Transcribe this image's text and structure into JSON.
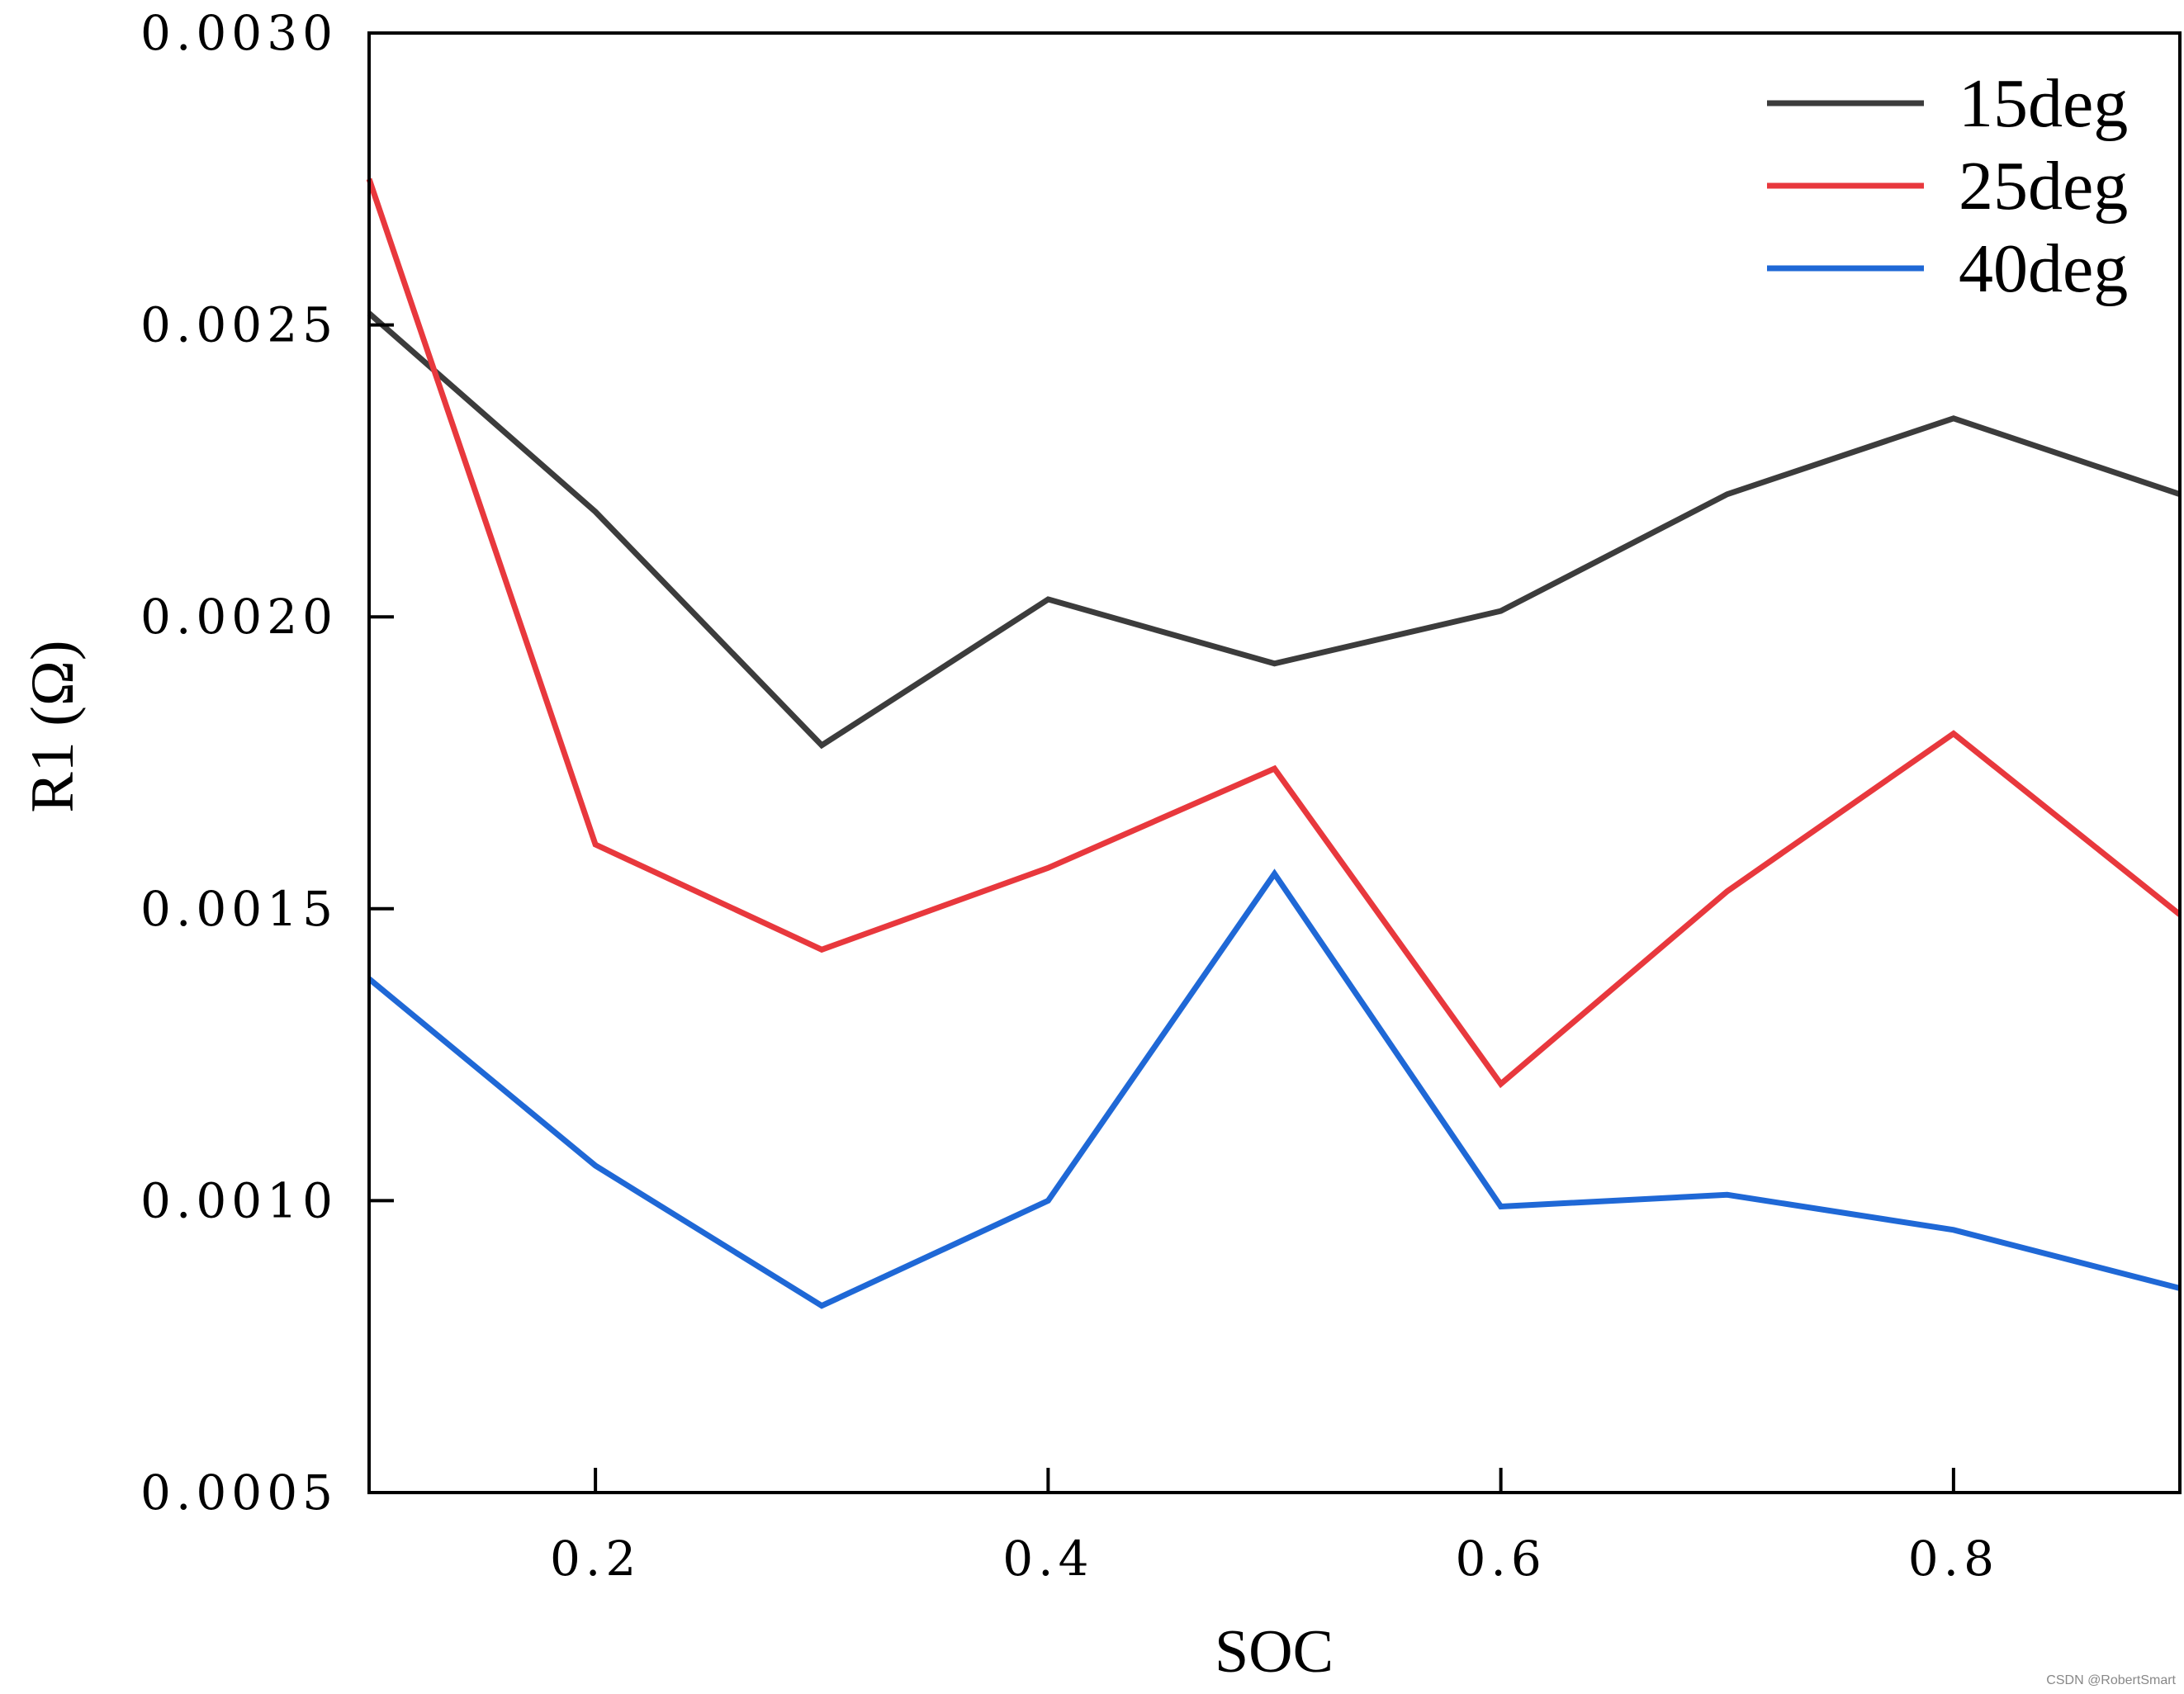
{
  "chart_data": {
    "type": "line",
    "title": "",
    "xlabel": "SOC",
    "ylabel": "R1 (Ω)",
    "xlim": [
      0.1,
      0.9
    ],
    "ylim": [
      0.0005,
      0.003
    ],
    "xticks": [
      0.2,
      0.4,
      0.6,
      0.8
    ],
    "xtick_labels": [
      "0.2",
      "0.4",
      "0.6",
      "0.8"
    ],
    "yticks": [
      0.0005,
      0.001,
      0.0015,
      0.002,
      0.0025,
      0.003
    ],
    "ytick_labels": [
      "0.0005",
      "0.0010",
      "0.0015",
      "0.0020",
      "0.0025",
      "0.0030"
    ],
    "grid": false,
    "legend_position": "top-right",
    "x": [
      0.1,
      0.2,
      0.3,
      0.4,
      0.5,
      0.6,
      0.7,
      0.8,
      0.9
    ],
    "series": [
      {
        "name": "15deg",
        "color": "#3c3c3c",
        "values": [
          0.00252,
          0.00218,
          0.00178,
          0.00203,
          0.00192,
          0.00201,
          0.00221,
          0.00234,
          0.00221
        ]
      },
      {
        "name": "25deg",
        "color": "#e8383d",
        "values": [
          0.00275,
          0.00161,
          0.00143,
          0.00157,
          0.00174,
          0.0012,
          0.00153,
          0.0018,
          0.00149
        ]
      },
      {
        "name": "40deg",
        "color": "#1f68d6",
        "values": [
          0.00138,
          0.00106,
          0.00082,
          0.001,
          0.00156,
          0.00099,
          0.00101,
          0.00095,
          0.00085
        ]
      }
    ]
  },
  "watermark": "CSDN @RobertSmart"
}
